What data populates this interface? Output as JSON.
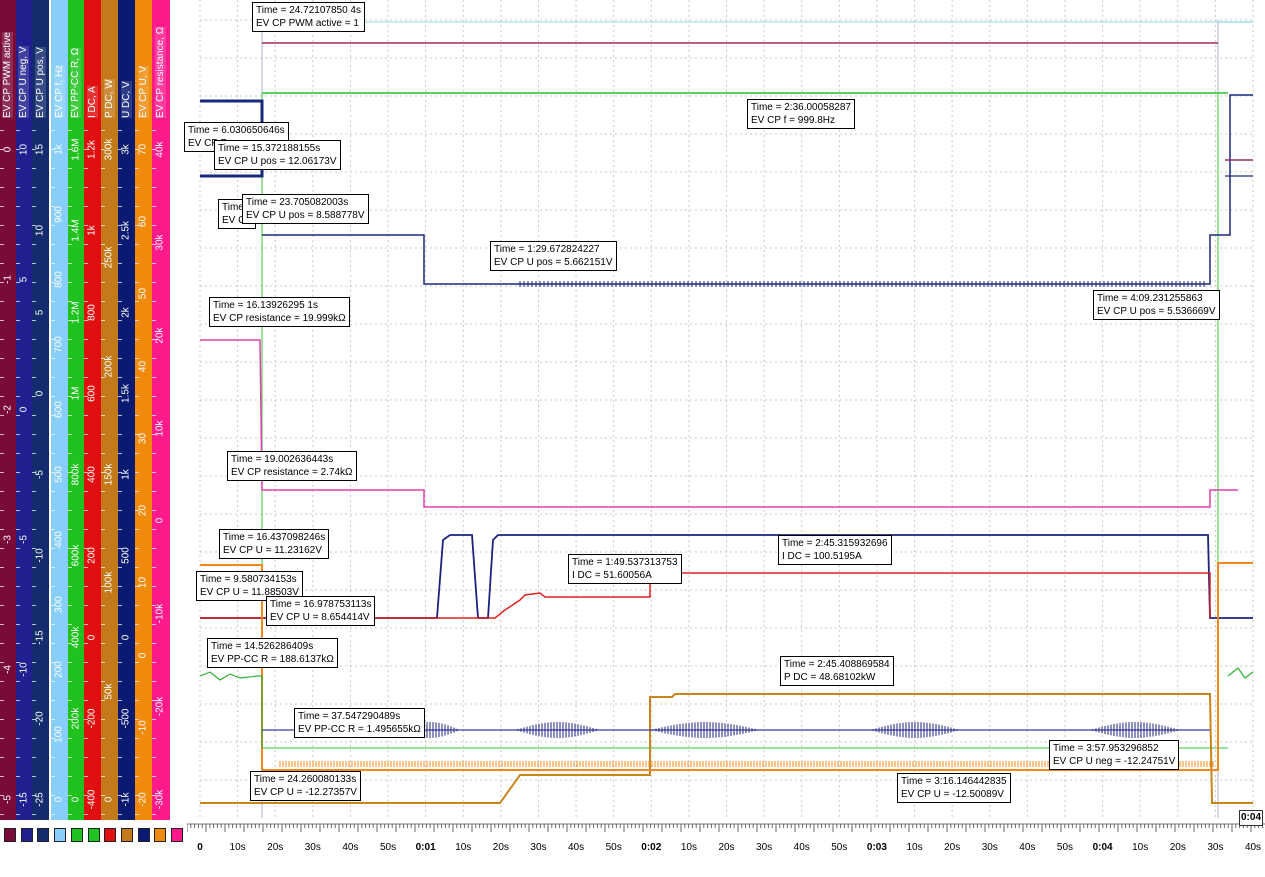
{
  "chart_data": {
    "type": "line",
    "x_axis": {
      "tick_labels": [
        "0",
        "10s",
        "20s",
        "30s",
        "40s",
        "50s",
        "0:01",
        "10s",
        "20s",
        "30s",
        "40s",
        "50s",
        "0:02",
        "10s",
        "20s",
        "30s",
        "40s",
        "50s",
        "0:03",
        "10s",
        "20s",
        "30s",
        "40s",
        "50s",
        "0:04",
        "10s",
        "20s",
        "30s",
        "40s"
      ],
      "end_label": "0:04"
    },
    "axes": [
      {
        "name": "EV CP PWM active",
        "color": "#7a0a3a",
        "text_color": "#ffffff",
        "ticks": [
          "-5",
          "-4",
          "-3",
          "-2",
          "-1",
          "0"
        ]
      },
      {
        "name": "EV CP U neg",
        "unit": "V",
        "color": "#1f1f8f",
        "text_color": "#ffffff",
        "ticks": [
          "-15",
          "-10",
          "-5",
          "0",
          "5",
          "10"
        ]
      },
      {
        "name": "EV CP U pos",
        "unit": "V",
        "color": "#142c6e",
        "text_color": "#ffffff",
        "ticks": [
          "-25",
          "-20",
          "-15",
          "-10",
          "-5",
          "0",
          "5",
          "10",
          "15"
        ]
      },
      {
        "name": "EV CP f",
        "unit": "Hz",
        "color": "#87cefa",
        "text_color": "#ffffff",
        "ticks": [
          "0",
          "100",
          "200",
          "300",
          "400",
          "500",
          "600",
          "700",
          "800",
          "900",
          "1k"
        ]
      },
      {
        "name": "EV PP-CC R",
        "unit": "Ω",
        "color": "#1fc21f",
        "text_color": "#ffffff",
        "ticks": [
          "0",
          "200k",
          "400k",
          "600k",
          "800k",
          "1M",
          "1.2M",
          "1.4M",
          "1.6M"
        ]
      },
      {
        "name": "I DC",
        "unit": "A",
        "color": "#e01010",
        "text_color": "#ffffff",
        "ticks": [
          "-400",
          "-200",
          "0",
          "200",
          "400",
          "600",
          "800",
          "1k",
          "1.2k"
        ]
      },
      {
        "name": "P DC",
        "unit": "W",
        "color": "#c47a1a",
        "text_color": "#ffffff",
        "ticks": [
          "0",
          "50k",
          "100k",
          "150k",
          "200k",
          "250k",
          "300k"
        ]
      },
      {
        "name": "U DC",
        "unit": "V",
        "color": "#0a1a70",
        "text_color": "#ffffff",
        "ticks": [
          "-1k",
          "-500",
          "0",
          "500",
          "1k",
          "1.5k",
          "2k",
          "2.5k",
          "3k"
        ]
      },
      {
        "name": "EV CP U",
        "unit": "V",
        "color": "#f08a0c",
        "text_color": "#ffffff",
        "ticks": [
          "-20",
          "-10",
          "0",
          "10",
          "20",
          "30",
          "40",
          "50",
          "60",
          "70"
        ]
      },
      {
        "name": "EV CP resistance",
        "unit": "Ω",
        "color": "#ff1a8c",
        "text_color": "#ffffff",
        "ticks": [
          "-30k",
          "-20k",
          "-10k",
          "0",
          "10k",
          "20k",
          "30k",
          "40k"
        ]
      }
    ],
    "series": [
      {
        "name": "EV CP PWM active",
        "color": "#9c2a5e"
      },
      {
        "name": "EV CP f",
        "color": "#5cd05c"
      },
      {
        "name": "EV CP U pos",
        "color": "#1a2a7a"
      },
      {
        "name": "EV CP resistance",
        "color": "#e040b0"
      },
      {
        "name": "U DC",
        "color": "#1a237e"
      },
      {
        "name": "I DC",
        "color": "#e02020"
      },
      {
        "name": "P DC",
        "color": "#c8861a"
      },
      {
        "name": "EV PP-CC R",
        "color": "#30b030"
      },
      {
        "name": "EV CP U",
        "color": "#f0881a"
      },
      {
        "name": "EV CP U neg",
        "color": "#3a3aa0"
      }
    ],
    "cursor_readouts": [
      {
        "time": "Time = 24.72107850 4s",
        "label": "EV CP PWM active = 1"
      },
      {
        "time": "Time = 6.030650646s",
        "label": "EV CP P"
      },
      {
        "time": "Time = 15.372188155s",
        "label": "EV CP U pos = 12.06173V"
      },
      {
        "time": "Time = 2:36.00058287",
        "label": "EV CP f = 999.8Hz"
      },
      {
        "time": "Time",
        "label": "EV CP"
      },
      {
        "time": "Time = 23.705082003s",
        "label": "EV CP U pos = 8.588778V"
      },
      {
        "time": "Time = 1:29.672824227",
        "label": "EV CP U pos = 5.662151V"
      },
      {
        "time": "Time = 4:09.231255863",
        "label": "EV CP U pos = 5.536669V"
      },
      {
        "time": "Time = 16.13926295 1s",
        "label": "EV CP resistance = 19.999kΩ"
      },
      {
        "time": "Time = 19.002636443s",
        "label": "EV CP resistance = 2.74kΩ"
      },
      {
        "time": "Time = 16.437098246s",
        "label": "EV CP U = 11.23162V"
      },
      {
        "time": "Time = 9.580734153s",
        "label": "EV CP U = 11.88503V"
      },
      {
        "time": "Time = 16.978753113s",
        "label": "EV CP U = 8.654414V"
      },
      {
        "time": "Time = 1:49.537313753",
        "label": "I DC = 51.60056A"
      },
      {
        "time": "Time = 2:45.315932696",
        "label": "I DC = 100.5195A"
      },
      {
        "time": "Time = 14.526286409s",
        "label": "EV PP-CC R = 188.6137kΩ"
      },
      {
        "time": "Time = 2:45.408869584",
        "label": "P DC = 48.68102kW"
      },
      {
        "time": "Time = 37.547290489s",
        "label": "EV PP-CC R = 1.495655kΩ"
      },
      {
        "time": "Time = 3:57.953296852",
        "label": "EV CP U neg = -12.24751V"
      },
      {
        "time": "Time = 24.260080133s",
        "label": "EV CP U = -12.27357V"
      },
      {
        "time": "Time = 3:16.146442835",
        "label": "EV CP U = -12.50089V"
      }
    ]
  }
}
